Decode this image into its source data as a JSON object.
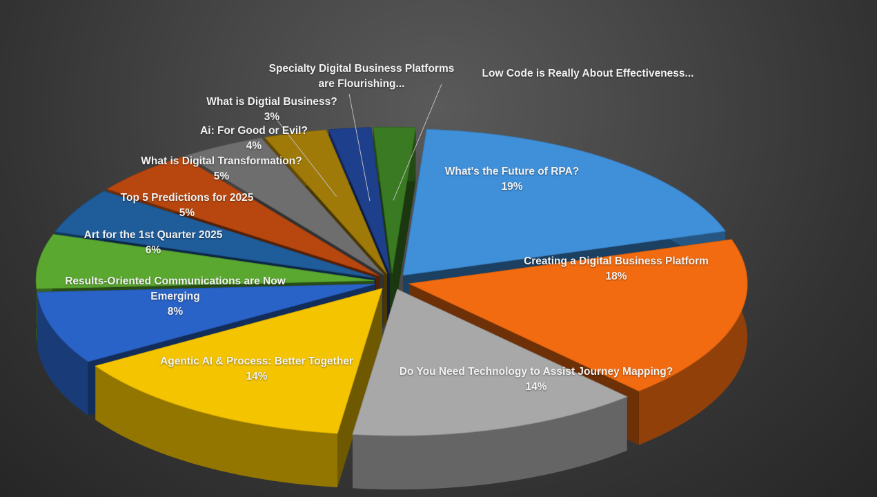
{
  "chart_data": {
    "type": "pie",
    "title": "",
    "categories": [
      "What's the Future of RPA?",
      "Creating a Digital Business Platform",
      "Do You Need Technology to Assist Journey Mapping?",
      "Agentic AI & Process: Better Together",
      "Results-Oriented Communications are Now Emerging",
      "Art for the 1st Quarter 2025",
      "Top 5 Predictions for 2025",
      "What is Digital Transformation?",
      "Ai: For Good or Evil?",
      "What is Digtial Business?",
      "Specialty Digital Business Platforms are Flourishing...",
      "Low Code is Really About Effectiveness..."
    ],
    "values": [
      19,
      18,
      14,
      14,
      8,
      6,
      5,
      5,
      4,
      3,
      2,
      2
    ],
    "labels": [
      {
        "name": "What's the Future of RPA?",
        "pct": "19%"
      },
      {
        "name": "Creating a Digital Business Platform",
        "pct": "18%"
      },
      {
        "name": "Do You Need Technology to Assist Journey Mapping?",
        "pct": "14%"
      },
      {
        "name": "Agentic AI & Process: Better Together",
        "pct": "14%"
      },
      {
        "name": "Results-Oriented Communications are Now Emerging",
        "pct": "8%"
      },
      {
        "name": "Art for the 1st Quarter 2025",
        "pct": "6%"
      },
      {
        "name": "Top 5 Predictions for 2025",
        "pct": "5%"
      },
      {
        "name": "What is Digital Transformation?",
        "pct": "5%"
      },
      {
        "name": "Ai: For Good or Evil?",
        "pct": "4%"
      },
      {
        "name": "What is Digtial Business?",
        "pct": "3%"
      },
      {
        "name": "Specialty Digital Business Platforms are Flourishing...",
        "pct": ""
      },
      {
        "name": "Low Code is Really About Effectiveness...",
        "pct": ""
      }
    ],
    "colors": [
      "#3f8fd9",
      "#f26b10",
      "#a8a8a8",
      "#f5c400",
      "#2a63c7",
      "#5aa830",
      "#1f5c9a",
      "#b8470f",
      "#6e6e6e",
      "#a07a08",
      "#1e3f8c",
      "#3a7a22"
    ],
    "style": "3d-exploded",
    "legend": "none",
    "background": "#333333"
  }
}
